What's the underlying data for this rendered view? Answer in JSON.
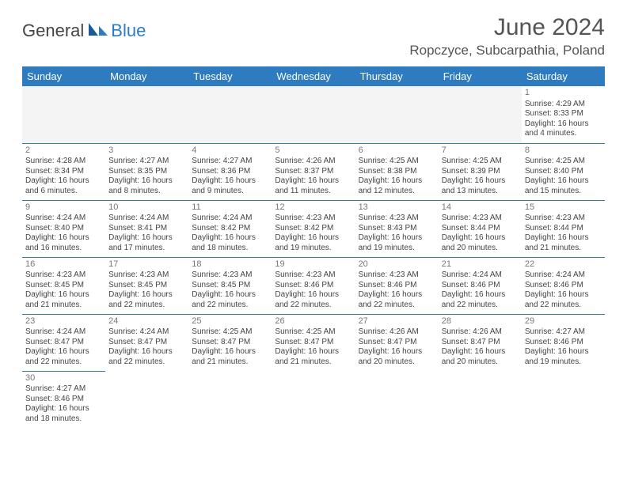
{
  "logo": {
    "text1": "General",
    "text2": "Blue"
  },
  "title": "June 2024",
  "location": "Ropczyce, Subcarpathia, Poland",
  "colors": {
    "header_bg": "#2e7bbf",
    "header_text": "#ffffff",
    "brand_blue": "#2c7bc4"
  },
  "daynames": [
    "Sunday",
    "Monday",
    "Tuesday",
    "Wednesday",
    "Thursday",
    "Friday",
    "Saturday"
  ],
  "weeks": [
    [
      null,
      null,
      null,
      null,
      null,
      null,
      {
        "n": "1",
        "sr": "Sunrise: 4:29 AM",
        "ss": "Sunset: 8:33 PM",
        "d1": "Daylight: 16 hours",
        "d2": "and 4 minutes."
      }
    ],
    [
      {
        "n": "2",
        "sr": "Sunrise: 4:28 AM",
        "ss": "Sunset: 8:34 PM",
        "d1": "Daylight: 16 hours",
        "d2": "and 6 minutes."
      },
      {
        "n": "3",
        "sr": "Sunrise: 4:27 AM",
        "ss": "Sunset: 8:35 PM",
        "d1": "Daylight: 16 hours",
        "d2": "and 8 minutes."
      },
      {
        "n": "4",
        "sr": "Sunrise: 4:27 AM",
        "ss": "Sunset: 8:36 PM",
        "d1": "Daylight: 16 hours",
        "d2": "and 9 minutes."
      },
      {
        "n": "5",
        "sr": "Sunrise: 4:26 AM",
        "ss": "Sunset: 8:37 PM",
        "d1": "Daylight: 16 hours",
        "d2": "and 11 minutes."
      },
      {
        "n": "6",
        "sr": "Sunrise: 4:25 AM",
        "ss": "Sunset: 8:38 PM",
        "d1": "Daylight: 16 hours",
        "d2": "and 12 minutes."
      },
      {
        "n": "7",
        "sr": "Sunrise: 4:25 AM",
        "ss": "Sunset: 8:39 PM",
        "d1": "Daylight: 16 hours",
        "d2": "and 13 minutes."
      },
      {
        "n": "8",
        "sr": "Sunrise: 4:25 AM",
        "ss": "Sunset: 8:40 PM",
        "d1": "Daylight: 16 hours",
        "d2": "and 15 minutes."
      }
    ],
    [
      {
        "n": "9",
        "sr": "Sunrise: 4:24 AM",
        "ss": "Sunset: 8:40 PM",
        "d1": "Daylight: 16 hours",
        "d2": "and 16 minutes."
      },
      {
        "n": "10",
        "sr": "Sunrise: 4:24 AM",
        "ss": "Sunset: 8:41 PM",
        "d1": "Daylight: 16 hours",
        "d2": "and 17 minutes."
      },
      {
        "n": "11",
        "sr": "Sunrise: 4:24 AM",
        "ss": "Sunset: 8:42 PM",
        "d1": "Daylight: 16 hours",
        "d2": "and 18 minutes."
      },
      {
        "n": "12",
        "sr": "Sunrise: 4:23 AM",
        "ss": "Sunset: 8:42 PM",
        "d1": "Daylight: 16 hours",
        "d2": "and 19 minutes."
      },
      {
        "n": "13",
        "sr": "Sunrise: 4:23 AM",
        "ss": "Sunset: 8:43 PM",
        "d1": "Daylight: 16 hours",
        "d2": "and 19 minutes."
      },
      {
        "n": "14",
        "sr": "Sunrise: 4:23 AM",
        "ss": "Sunset: 8:44 PM",
        "d1": "Daylight: 16 hours",
        "d2": "and 20 minutes."
      },
      {
        "n": "15",
        "sr": "Sunrise: 4:23 AM",
        "ss": "Sunset: 8:44 PM",
        "d1": "Daylight: 16 hours",
        "d2": "and 21 minutes."
      }
    ],
    [
      {
        "n": "16",
        "sr": "Sunrise: 4:23 AM",
        "ss": "Sunset: 8:45 PM",
        "d1": "Daylight: 16 hours",
        "d2": "and 21 minutes."
      },
      {
        "n": "17",
        "sr": "Sunrise: 4:23 AM",
        "ss": "Sunset: 8:45 PM",
        "d1": "Daylight: 16 hours",
        "d2": "and 22 minutes."
      },
      {
        "n": "18",
        "sr": "Sunrise: 4:23 AM",
        "ss": "Sunset: 8:45 PM",
        "d1": "Daylight: 16 hours",
        "d2": "and 22 minutes."
      },
      {
        "n": "19",
        "sr": "Sunrise: 4:23 AM",
        "ss": "Sunset: 8:46 PM",
        "d1": "Daylight: 16 hours",
        "d2": "and 22 minutes."
      },
      {
        "n": "20",
        "sr": "Sunrise: 4:23 AM",
        "ss": "Sunset: 8:46 PM",
        "d1": "Daylight: 16 hours",
        "d2": "and 22 minutes."
      },
      {
        "n": "21",
        "sr": "Sunrise: 4:24 AM",
        "ss": "Sunset: 8:46 PM",
        "d1": "Daylight: 16 hours",
        "d2": "and 22 minutes."
      },
      {
        "n": "22",
        "sr": "Sunrise: 4:24 AM",
        "ss": "Sunset: 8:46 PM",
        "d1": "Daylight: 16 hours",
        "d2": "and 22 minutes."
      }
    ],
    [
      {
        "n": "23",
        "sr": "Sunrise: 4:24 AM",
        "ss": "Sunset: 8:47 PM",
        "d1": "Daylight: 16 hours",
        "d2": "and 22 minutes."
      },
      {
        "n": "24",
        "sr": "Sunrise: 4:24 AM",
        "ss": "Sunset: 8:47 PM",
        "d1": "Daylight: 16 hours",
        "d2": "and 22 minutes."
      },
      {
        "n": "25",
        "sr": "Sunrise: 4:25 AM",
        "ss": "Sunset: 8:47 PM",
        "d1": "Daylight: 16 hours",
        "d2": "and 21 minutes."
      },
      {
        "n": "26",
        "sr": "Sunrise: 4:25 AM",
        "ss": "Sunset: 8:47 PM",
        "d1": "Daylight: 16 hours",
        "d2": "and 21 minutes."
      },
      {
        "n": "27",
        "sr": "Sunrise: 4:26 AM",
        "ss": "Sunset: 8:47 PM",
        "d1": "Daylight: 16 hours",
        "d2": "and 20 minutes."
      },
      {
        "n": "28",
        "sr": "Sunrise: 4:26 AM",
        "ss": "Sunset: 8:47 PM",
        "d1": "Daylight: 16 hours",
        "d2": "and 20 minutes."
      },
      {
        "n": "29",
        "sr": "Sunrise: 4:27 AM",
        "ss": "Sunset: 8:46 PM",
        "d1": "Daylight: 16 hours",
        "d2": "and 19 minutes."
      }
    ],
    [
      {
        "n": "30",
        "sr": "Sunrise: 4:27 AM",
        "ss": "Sunset: 8:46 PM",
        "d1": "Daylight: 16 hours",
        "d2": "and 18 minutes."
      },
      null,
      null,
      null,
      null,
      null,
      null
    ]
  ]
}
